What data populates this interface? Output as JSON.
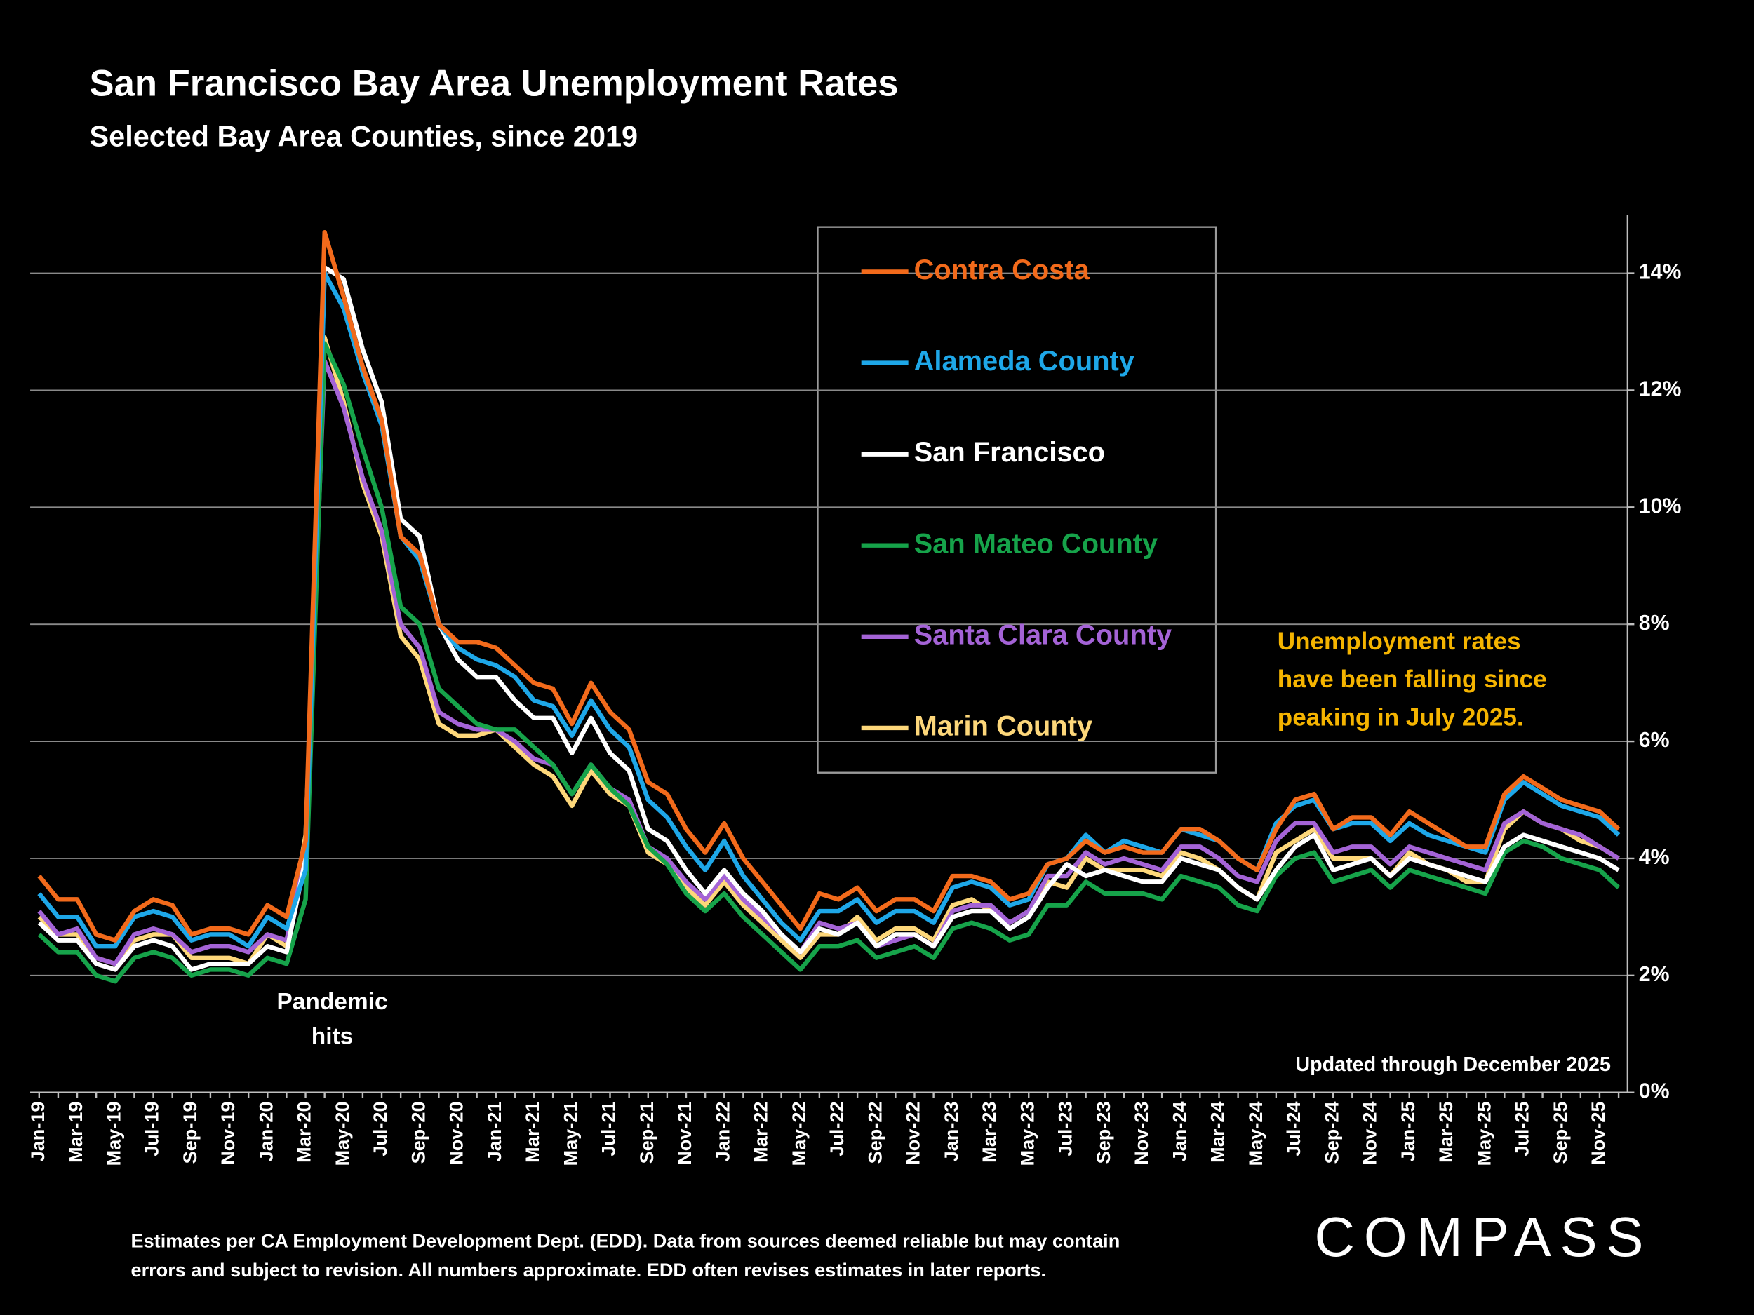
{
  "chart_data": {
    "type": "line",
    "title": "San Francisco Bay Area Unemployment Rates",
    "subtitle": "Selected Bay Area Counties, since 2019",
    "categories": [
      "Jan-19",
      null,
      "Mar-19",
      null,
      "May-19",
      null,
      "Jul-19",
      null,
      "Sep-19",
      null,
      "Nov-19",
      null,
      "Jan-20",
      null,
      "Mar-20",
      null,
      "May-20",
      null,
      "Jul-20",
      null,
      "Sep-20",
      null,
      "Nov-20",
      null,
      "Jan-21",
      null,
      "Mar-21",
      null,
      "May-21",
      null,
      "Jul-21",
      null,
      "Sep-21",
      null,
      "Nov-21",
      null,
      "Jan-22",
      null,
      "Mar-22",
      null,
      "May-22",
      null,
      "Jul-22",
      null,
      "Sep-22",
      null,
      "Nov-22",
      null,
      "Jan-23",
      null,
      "Mar-23",
      null,
      "May-23",
      null,
      "Jul-23",
      null,
      "Sep-23",
      null,
      "Nov-23",
      null,
      "Jan-24",
      null,
      "Mar-24",
      null,
      "May-24",
      null,
      "Jul-24",
      null,
      "Sep-24",
      null,
      "Nov-24",
      null,
      "Jan-25",
      null,
      "Mar-25",
      null,
      "May-25",
      null,
      "Jul-25",
      null,
      "Sep-25",
      null,
      "Nov-25",
      null
    ],
    "series": [
      {
        "name": "Contra Costa",
        "color": "#f26a1b",
        "values": [
          3.7,
          3.3,
          3.3,
          2.7,
          2.6,
          3.1,
          3.3,
          3.2,
          2.7,
          2.8,
          2.8,
          2.7,
          3.2,
          3.0,
          4.3,
          14.7,
          13.6,
          12.4,
          11.5,
          9.5,
          9.2,
          8.0,
          7.7,
          7.7,
          7.6,
          7.3,
          7.0,
          6.9,
          6.3,
          7.0,
          6.5,
          6.2,
          5.3,
          5.1,
          4.5,
          4.1,
          4.6,
          4.0,
          3.6,
          3.2,
          2.8,
          3.4,
          3.3,
          3.5,
          3.1,
          3.3,
          3.3,
          3.1,
          3.7,
          3.7,
          3.6,
          3.3,
          3.4,
          3.9,
          4.0,
          4.3,
          4.1,
          4.2,
          4.1,
          4.1,
          4.5,
          4.5,
          4.3,
          4.0,
          3.8,
          4.5,
          5.0,
          5.1,
          4.5,
          4.7,
          4.7,
          4.4,
          4.8,
          4.6,
          4.4,
          4.2,
          4.2,
          5.1,
          5.4,
          5.2,
          5.0,
          4.9,
          4.8,
          4.5
        ]
      },
      {
        "name": "Alameda County",
        "color": "#1ea7e8",
        "values": [
          3.4,
          3.0,
          3.0,
          2.5,
          2.5,
          3.0,
          3.1,
          3.0,
          2.6,
          2.7,
          2.7,
          2.5,
          3.0,
          2.8,
          3.8,
          14.0,
          13.4,
          12.3,
          11.4,
          9.5,
          9.1,
          8.0,
          7.6,
          7.4,
          7.3,
          7.1,
          6.7,
          6.6,
          6.1,
          6.7,
          6.2,
          5.9,
          5.0,
          4.7,
          4.2,
          3.8,
          4.3,
          3.7,
          3.3,
          2.9,
          2.6,
          3.1,
          3.1,
          3.3,
          2.9,
          3.1,
          3.1,
          2.9,
          3.5,
          3.6,
          3.5,
          3.2,
          3.3,
          3.9,
          4.0,
          4.4,
          4.1,
          4.3,
          4.2,
          4.1,
          4.5,
          4.4,
          4.3,
          4.0,
          3.8,
          4.6,
          4.9,
          5.0,
          4.5,
          4.6,
          4.6,
          4.3,
          4.6,
          4.4,
          4.3,
          4.2,
          4.1,
          5.0,
          5.3,
          5.1,
          4.9,
          4.8,
          4.7,
          4.4
        ]
      },
      {
        "name": "San Francisco",
        "color": "#ffffff",
        "values": [
          2.9,
          2.6,
          2.6,
          2.2,
          2.1,
          2.5,
          2.6,
          2.5,
          2.1,
          2.2,
          2.2,
          2.2,
          2.5,
          2.4,
          4.0,
          14.1,
          13.9,
          12.7,
          11.8,
          9.8,
          9.5,
          8.0,
          7.4,
          7.1,
          7.1,
          6.7,
          6.4,
          6.4,
          5.8,
          6.4,
          5.8,
          5.5,
          4.5,
          4.3,
          3.8,
          3.4,
          3.8,
          3.4,
          3.1,
          2.7,
          2.4,
          2.8,
          2.7,
          2.9,
          2.5,
          2.7,
          2.7,
          2.5,
          3.0,
          3.1,
          3.1,
          2.8,
          3.0,
          3.5,
          3.9,
          3.7,
          3.8,
          3.7,
          3.6,
          3.6,
          4.0,
          3.9,
          3.8,
          3.5,
          3.3,
          3.8,
          4.2,
          4.4,
          3.8,
          3.9,
          4.0,
          3.7,
          4.0,
          3.9,
          3.8,
          3.7,
          3.6,
          4.2,
          4.4,
          4.3,
          4.2,
          4.1,
          4.0,
          3.8
        ]
      },
      {
        "name": "San Mateo County",
        "color": "#16a34a",
        "values": [
          2.7,
          2.4,
          2.4,
          2.0,
          1.9,
          2.3,
          2.4,
          2.3,
          2.0,
          2.1,
          2.1,
          2.0,
          2.3,
          2.2,
          3.3,
          12.8,
          12.1,
          11.0,
          10.0,
          8.3,
          8.0,
          6.9,
          6.6,
          6.3,
          6.2,
          6.2,
          5.9,
          5.6,
          5.1,
          5.6,
          5.2,
          4.9,
          4.2,
          3.9,
          3.4,
          3.1,
          3.4,
          3.0,
          2.7,
          2.4,
          2.1,
          2.5,
          2.5,
          2.6,
          2.3,
          2.4,
          2.5,
          2.3,
          2.8,
          2.9,
          2.8,
          2.6,
          2.7,
          3.2,
          3.2,
          3.6,
          3.4,
          3.4,
          3.4,
          3.3,
          3.7,
          3.6,
          3.5,
          3.2,
          3.1,
          3.7,
          4.0,
          4.1,
          3.6,
          3.7,
          3.8,
          3.5,
          3.8,
          3.7,
          3.6,
          3.5,
          3.4,
          4.1,
          4.3,
          4.2,
          4.0,
          3.9,
          3.8,
          3.5
        ]
      },
      {
        "name": "Santa Clara County",
        "color": "#a463d6",
        "values": [
          3.1,
          2.7,
          2.8,
          2.3,
          2.2,
          2.7,
          2.8,
          2.7,
          2.4,
          2.5,
          2.5,
          2.4,
          2.7,
          2.6,
          4.2,
          12.5,
          11.7,
          10.5,
          9.6,
          8.0,
          7.6,
          6.5,
          6.3,
          6.2,
          6.2,
          6.0,
          5.7,
          5.6,
          5.1,
          5.6,
          5.2,
          5.0,
          4.2,
          4.0,
          3.6,
          3.3,
          3.7,
          3.3,
          3.0,
          2.7,
          2.4,
          2.9,
          2.8,
          2.9,
          2.5,
          2.6,
          2.7,
          2.5,
          3.1,
          3.2,
          3.2,
          2.9,
          3.1,
          3.7,
          3.7,
          4.1,
          3.9,
          4.0,
          3.9,
          3.8,
          4.2,
          4.2,
          4.0,
          3.7,
          3.6,
          4.3,
          4.6,
          4.6,
          4.1,
          4.2,
          4.2,
          3.9,
          4.2,
          4.1,
          4.0,
          3.9,
          3.8,
          4.6,
          4.8,
          4.6,
          4.5,
          4.4,
          4.2,
          4.0
        ]
      },
      {
        "name": "Marin County",
        "color": "#fdd77a",
        "values": [
          3.0,
          2.7,
          2.7,
          2.3,
          2.2,
          2.6,
          2.7,
          2.7,
          2.3,
          2.3,
          2.3,
          2.2,
          2.7,
          2.5,
          4.4,
          12.9,
          11.8,
          10.4,
          9.5,
          7.8,
          7.4,
          6.3,
          6.1,
          6.1,
          6.2,
          5.9,
          5.6,
          5.4,
          4.9,
          5.5,
          5.1,
          4.9,
          4.1,
          3.9,
          3.5,
          3.2,
          3.6,
          3.2,
          2.9,
          2.6,
          2.3,
          2.7,
          2.7,
          3.0,
          2.6,
          2.8,
          2.8,
          2.6,
          3.2,
          3.3,
          3.1,
          2.9,
          3.1,
          3.6,
          3.5,
          4.0,
          3.8,
          3.8,
          3.8,
          3.7,
          4.1,
          4.0,
          3.8,
          3.5,
          3.3,
          4.1,
          4.3,
          4.5,
          4.0,
          4.0,
          4.0,
          3.7,
          4.1,
          3.9,
          3.8,
          3.6,
          3.6,
          4.5,
          4.8,
          4.6,
          4.5,
          4.3,
          4.2,
          4.0
        ]
      }
    ],
    "ylim": [
      0,
      15
    ],
    "yticks": [
      {
        "value": 0,
        "label": "0%"
      },
      {
        "value": 2,
        "label": "2%"
      },
      {
        "value": 4,
        "label": "4%"
      },
      {
        "value": 6,
        "label": "6%"
      },
      {
        "value": 8,
        "label": "8%"
      },
      {
        "value": 10,
        "label": "10%"
      },
      {
        "value": 12,
        "label": "12%"
      },
      {
        "value": 14,
        "label": "14%"
      }
    ],
    "grid": true,
    "annotations": [
      {
        "lines": [
          "Pandemic",
          "hits"
        ],
        "color": "#ffffff"
      },
      {
        "lines": [
          "Unemployment    rates",
          "have been falling since",
          "peaking in July 2025."
        ],
        "color": "#f5b400"
      },
      {
        "lines": [
          "Updated through December 2025"
        ],
        "color": "#ffffff"
      }
    ],
    "source": [
      "Estimates per CA Employment Development Dept. (EDD). Data from sources deemed reliable but may contain",
      "errors and subject to revision. All numbers approximate.  EDD often revises estimates in later reports."
    ],
    "logo": "COMPASS"
  }
}
